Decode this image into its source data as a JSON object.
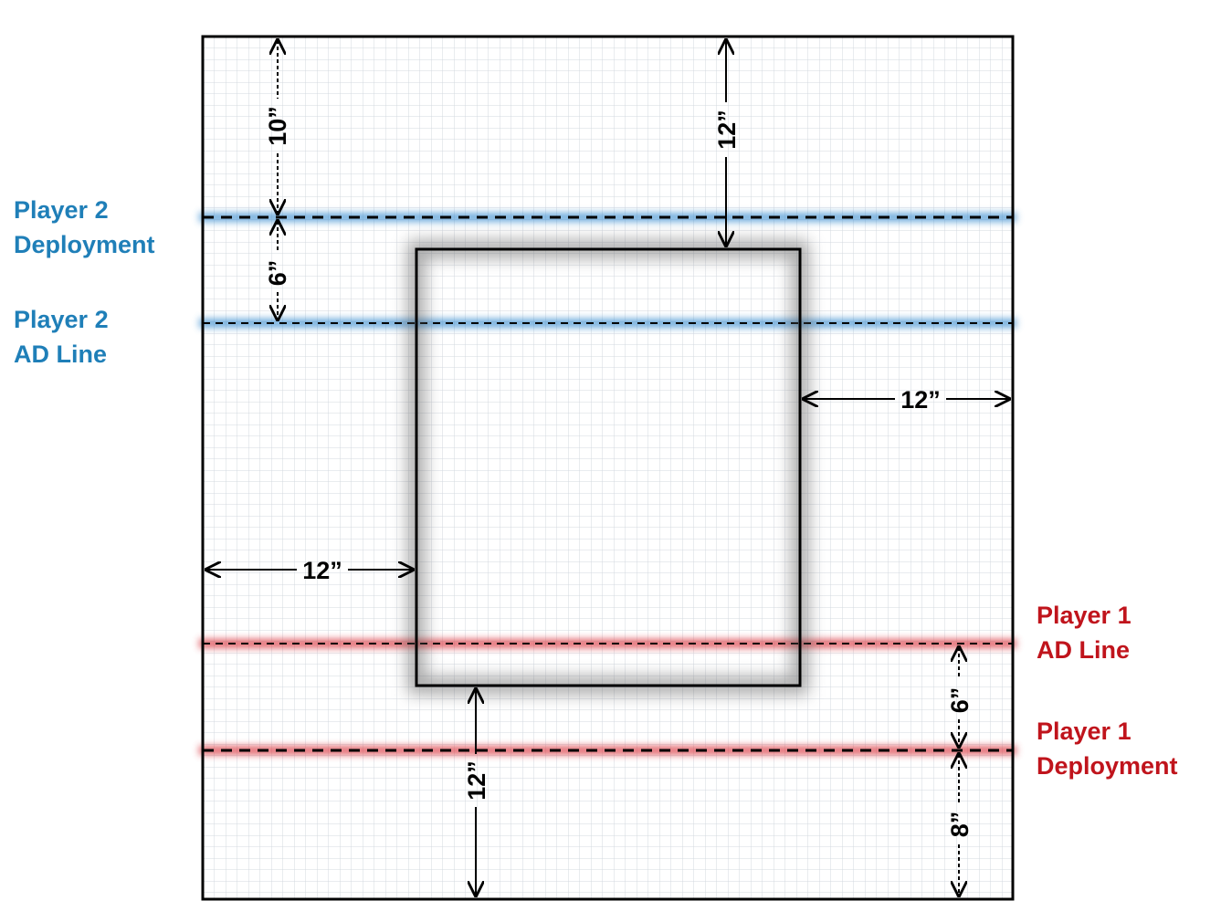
{
  "colors": {
    "player2": "#1f7fb8",
    "player1": "#c0141c",
    "grid": "#cfd4dc",
    "board_border": "#000000"
  },
  "labels": {
    "player2_deployment": [
      "Player 2",
      "Deployment"
    ],
    "player2_ad_line": [
      "Player 2",
      "AD Line"
    ],
    "player1_ad_line": [
      "Player 1",
      "AD Line"
    ],
    "player1_deployment": [
      "Player 1",
      "Deployment"
    ]
  },
  "dimensions": {
    "top_to_p2_deployment": "10”",
    "top_to_central_zone": "12”",
    "p2_deployment_to_ad": "6”",
    "central_zone_to_right_edge": "12”",
    "left_edge_to_central_zone": "12”",
    "central_zone_to_bottom": "12”",
    "p1_ad_to_deployment": "6”",
    "p1_deployment_to_bottom": "8”"
  }
}
